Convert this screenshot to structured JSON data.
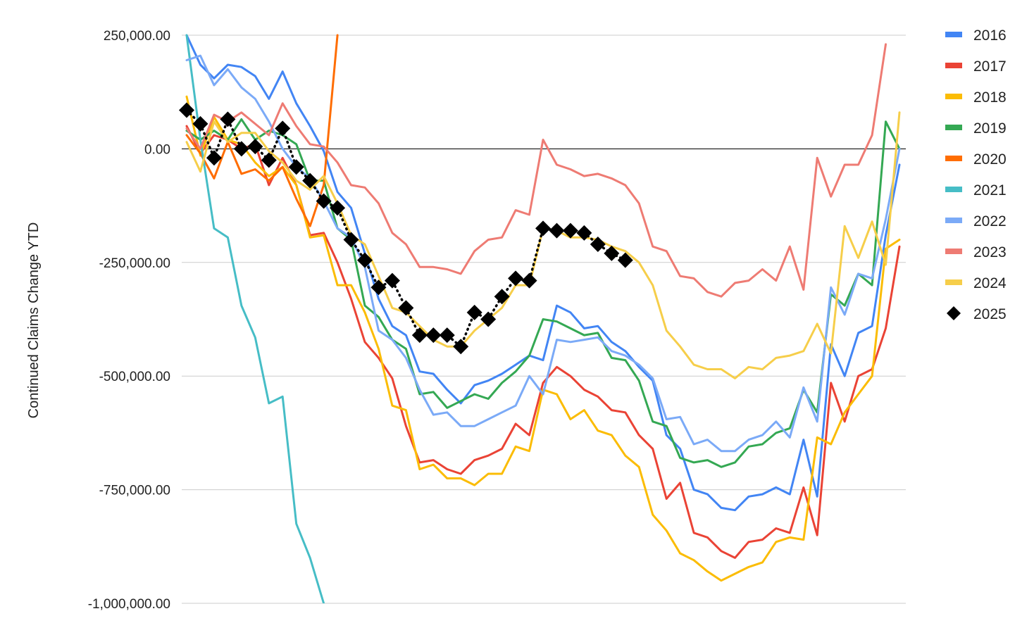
{
  "chart_data": {
    "type": "line",
    "title": "",
    "xlabel": "",
    "ylabel": "Continued Claims Change YTD",
    "ylim": [
      -1000000,
      250000
    ],
    "yticks": [
      250000,
      0,
      -250000,
      -500000,
      -750000,
      -1000000
    ],
    "ytick_labels": [
      "250,000.00",
      "0.00",
      "-250,000.00",
      "-500,000.00",
      "-750,000.00",
      "-1,000,000.00"
    ],
    "week_count": 53,
    "grid": true,
    "legend_position": "right",
    "series": [
      {
        "name": "2016",
        "color": "#4285f4",
        "style": "line",
        "values": [
          250000,
          185000,
          155000,
          185000,
          180000,
          160000,
          110000,
          170000,
          100000,
          50000,
          -5000,
          -95000,
          -130000,
          -230000,
          -330000,
          -390000,
          -410000,
          -490000,
          -495000,
          -530000,
          -560000,
          -520000,
          -510000,
          -495000,
          -475000,
          -455000,
          -465000,
          -345000,
          -360000,
          -395000,
          -390000,
          -425000,
          -445000,
          -480000,
          -510000,
          -630000,
          -660000,
          -750000,
          -760000,
          -790000,
          -795000,
          -765000,
          -760000,
          -745000,
          -760000,
          -640000,
          -765000,
          -430000,
          -500000,
          -405000,
          -390000,
          -190000,
          -35000
        ]
      },
      {
        "name": "2017",
        "color": "#ea4335",
        "style": "line",
        "values": [
          50000,
          -10000,
          30000,
          20000,
          0,
          10000,
          -80000,
          -20000,
          -80000,
          -190000,
          -185000,
          -250000,
          -330000,
          -425000,
          -460000,
          -505000,
          -610000,
          -690000,
          -685000,
          -705000,
          -715000,
          -685000,
          -675000,
          -660000,
          -605000,
          -630000,
          -515000,
          -480000,
          -500000,
          -530000,
          -545000,
          -575000,
          -580000,
          -630000,
          -660000,
          -770000,
          -735000,
          -845000,
          -855000,
          -885000,
          -900000,
          -865000,
          -860000,
          -835000,
          -845000,
          -745000,
          -850000,
          -515000,
          -600000,
          -500000,
          -485000,
          -395000,
          -215000
        ]
      },
      {
        "name": "2018",
        "color": "#fbbc04",
        "style": "line",
        "values": [
          115000,
          -15000,
          70000,
          20000,
          10000,
          -30000,
          -60000,
          -40000,
          -80000,
          -195000,
          -190000,
          -300000,
          -300000,
          -360000,
          -440000,
          -565000,
          -575000,
          -705000,
          -695000,
          -725000,
          -725000,
          -740000,
          -715000,
          -715000,
          -655000,
          -665000,
          -530000,
          -540000,
          -595000,
          -575000,
          -620000,
          -630000,
          -675000,
          -700000,
          -805000,
          -840000,
          -890000,
          -905000,
          -930000,
          -950000,
          -935000,
          -920000,
          -910000,
          -865000,
          -855000,
          -860000,
          -635000,
          -650000,
          -580000,
          -540000,
          -500000,
          -220000,
          -200000
        ]
      },
      {
        "name": "2019",
        "color": "#34a853",
        "style": "line",
        "values": [
          40000,
          20000,
          40000,
          20000,
          65000,
          20000,
          40000,
          30000,
          10000,
          -70000,
          -70000,
          -175000,
          -200000,
          -345000,
          -370000,
          -420000,
          -440000,
          -540000,
          -535000,
          -570000,
          -555000,
          -540000,
          -550000,
          -515000,
          -490000,
          -455000,
          -375000,
          -380000,
          -395000,
          -410000,
          -405000,
          -460000,
          -465000,
          -510000,
          -600000,
          -610000,
          -680000,
          -690000,
          -685000,
          -700000,
          -690000,
          -655000,
          -650000,
          -625000,
          -615000,
          -530000,
          -580000,
          -320000,
          -345000,
          -275000,
          -300000,
          60000,
          0
        ]
      },
      {
        "name": "2020",
        "color": "#ff6d01",
        "style": "line",
        "values": [
          30000,
          -10000,
          -65000,
          15000,
          -55000,
          -45000,
          -70000,
          -40000,
          -110000,
          -170000,
          -80000,
          250000
        ]
      },
      {
        "name": "2021",
        "color": "#46bdc6",
        "style": "line",
        "values": [
          250000,
          20000,
          -175000,
          -195000,
          -345000,
          -415000,
          -560000,
          -545000,
          -825000,
          -900000,
          -1000000
        ]
      },
      {
        "name": "2022",
        "color": "#7baaf7",
        "style": "line",
        "values": [
          195000,
          205000,
          140000,
          175000,
          135000,
          110000,
          60000,
          0,
          -40000,
          -65000,
          -115000,
          -175000,
          -195000,
          -260000,
          -400000,
          -420000,
          -460000,
          -530000,
          -585000,
          -580000,
          -610000,
          -610000,
          -595000,
          -580000,
          -565000,
          -500000,
          -540000,
          -420000,
          -425000,
          -420000,
          -415000,
          -445000,
          -455000,
          -475000,
          -505000,
          -595000,
          -590000,
          -650000,
          -640000,
          -665000,
          -665000,
          -640000,
          -630000,
          -600000,
          -635000,
          -525000,
          -600000,
          -305000,
          -365000,
          -275000,
          -285000,
          -155000,
          0
        ]
      },
      {
        "name": "2023",
        "color": "#ee7b73",
        "style": "line",
        "values": [
          45000,
          0,
          75000,
          60000,
          80000,
          55000,
          30000,
          100000,
          50000,
          10000,
          5000,
          -30000,
          -80000,
          -85000,
          -120000,
          -185000,
          -210000,
          -260000,
          -260000,
          -265000,
          -275000,
          -225000,
          -200000,
          -195000,
          -135000,
          -145000,
          20000,
          -35000,
          -45000,
          -60000,
          -55000,
          -65000,
          -80000,
          -120000,
          -215000,
          -225000,
          -280000,
          -285000,
          -315000,
          -325000,
          -295000,
          -290000,
          -265000,
          -290000,
          -215000,
          -310000,
          -20000,
          -105000,
          -35000,
          -35000,
          30000,
          230000
        ]
      },
      {
        "name": "2024",
        "color": "#f6ce4a",
        "style": "line",
        "values": [
          15000,
          -50000,
          60000,
          15000,
          35000,
          35000,
          -5000,
          -30000,
          -70000,
          -90000,
          -60000,
          -120000,
          -190000,
          -210000,
          -280000,
          -350000,
          -360000,
          -390000,
          -420000,
          -435000,
          -435000,
          -400000,
          -375000,
          -350000,
          -300000,
          -300000,
          -175000,
          -180000,
          -195000,
          -195000,
          -200000,
          -215000,
          -225000,
          -250000,
          -300000,
          -400000,
          -435000,
          -475000,
          -485000,
          -485000,
          -505000,
          -480000,
          -485000,
          -460000,
          -455000,
          -445000,
          -385000,
          -450000,
          -170000,
          -240000,
          -160000,
          -255000,
          80000
        ]
      },
      {
        "name": "2025",
        "color": "#000000",
        "style": "dotted-diamond",
        "values": [
          85000,
          55000,
          -20000,
          65000,
          0,
          5000,
          -25000,
          45000,
          -40000,
          -70000,
          -115000,
          -130000,
          -200000,
          -245000,
          -305000,
          -290000,
          -350000,
          -410000,
          -410000,
          -410000,
          -435000,
          -360000,
          -375000,
          -325000,
          -285000,
          -290000,
          -175000,
          -180000,
          -180000,
          -185000,
          -210000,
          -230000,
          -245000
        ]
      }
    ]
  }
}
